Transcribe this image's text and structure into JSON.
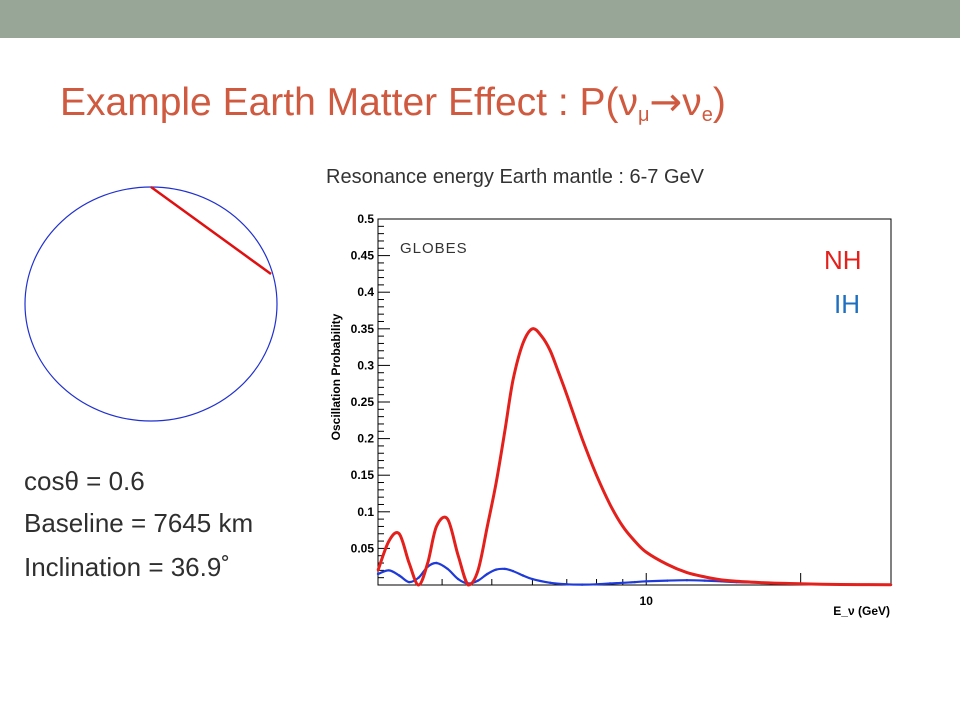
{
  "slide": {
    "title_main": "Example Earth Matter Effect : P(",
    "title_nu1": "ν",
    "title_sub1": "μ",
    "title_arrow": "→",
    "title_nu2": "ν",
    "title_sub2": "e",
    "title_close": ")",
    "subtitle": "Resonance energy Earth mantle : 6-7 GeV",
    "info": {
      "cos_label": "cosθ",
      "cos_value": "= 0.6",
      "baseline_label": "Baseline",
      "baseline_value": "= 7645 km",
      "inclination_label": "Inclination",
      "inclination_value": "= 36.9˚"
    },
    "colors": {
      "title": "#cf5a3f",
      "topbar": "#97a696",
      "earth_circle": "#2030d0",
      "baseline_chord": "#e01010"
    }
  },
  "chart_data": {
    "type": "line",
    "title": "",
    "xlabel": "E_ν (GeV)",
    "ylabel": "Oscillation Probability",
    "x_scale": "log",
    "xlim": [
      3,
      30
    ],
    "ylim": [
      0,
      0.5
    ],
    "x_tick_labels": [
      "10"
    ],
    "y_tick_labels": [
      "0.05",
      "0.1",
      "0.15",
      "0.2",
      "0.25",
      "0.3",
      "0.35",
      "0.4",
      "0.45",
      "0.5"
    ],
    "annotation": "GLOBES",
    "legend": {
      "position": "top-right",
      "entries": [
        "NH",
        "IH"
      ]
    },
    "series": [
      {
        "name": "NH",
        "color": "#e3201b",
        "x": [
          3.0,
          3.15,
          3.3,
          3.45,
          3.6,
          3.75,
          3.9,
          4.1,
          4.3,
          4.5,
          4.7,
          4.9,
          5.1,
          5.3,
          5.5,
          5.75,
          6.0,
          6.25,
          6.5,
          6.75,
          7.0,
          7.5,
          8.0,
          8.5,
          9.0,
          9.5,
          10.0,
          11.0,
          12.0,
          13.0,
          14.0,
          15.0,
          17.0,
          19.0,
          22.0,
          26.0,
          30.0
        ],
        "y": [
          0.02,
          0.06,
          0.07,
          0.03,
          0.0,
          0.03,
          0.08,
          0.09,
          0.04,
          0.0,
          0.02,
          0.08,
          0.14,
          0.21,
          0.28,
          0.33,
          0.35,
          0.34,
          0.32,
          0.29,
          0.26,
          0.2,
          0.15,
          0.11,
          0.08,
          0.06,
          0.045,
          0.028,
          0.017,
          0.011,
          0.007,
          0.005,
          0.003,
          0.002,
          0.001,
          0.0005,
          0.0003
        ]
      },
      {
        "name": "IH",
        "color": "#1e3ad8",
        "x": [
          3.0,
          3.15,
          3.3,
          3.45,
          3.6,
          3.75,
          3.9,
          4.1,
          4.3,
          4.5,
          4.7,
          4.9,
          5.1,
          5.3,
          5.5,
          5.75,
          6.0,
          6.5,
          7.0,
          7.5,
          8.0,
          8.5,
          9.0,
          9.5,
          10.0,
          11.0,
          12.0,
          13.0,
          14.0,
          15.0,
          17.0,
          19.0,
          22.0,
          26.0,
          30.0
        ],
        "y": [
          0.015,
          0.02,
          0.013,
          0.004,
          0.01,
          0.025,
          0.03,
          0.022,
          0.008,
          0.002,
          0.006,
          0.015,
          0.021,
          0.022,
          0.019,
          0.013,
          0.008,
          0.003,
          0.001,
          0.0005,
          0.001,
          0.002,
          0.003,
          0.004,
          0.005,
          0.006,
          0.0065,
          0.006,
          0.005,
          0.004,
          0.003,
          0.002,
          0.001,
          0.0005,
          0.0002
        ]
      }
    ]
  }
}
